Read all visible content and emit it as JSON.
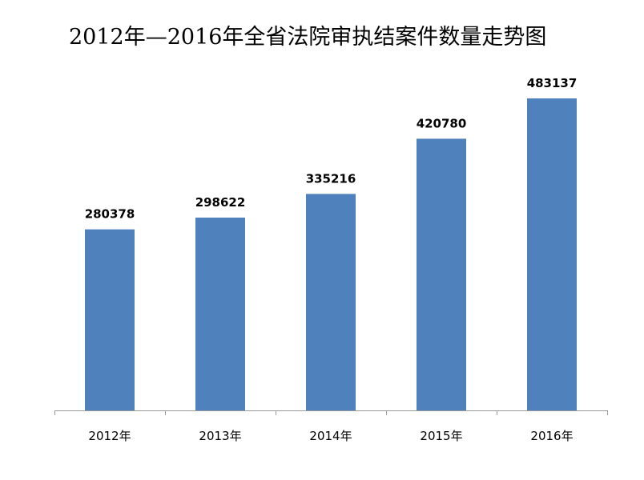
{
  "chart_data": {
    "type": "bar",
    "title": "2012年—2016年全省法院审执结案件数量走势图",
    "xlabel": "",
    "ylabel": "",
    "categories": [
      "2012年",
      "2013年",
      "2014年",
      "2015年",
      "2016年"
    ],
    "values": [
      280378,
      298622,
      335216,
      420780,
      483137
    ],
    "ylim": [
      0,
      560000
    ],
    "bar_color": "#4f81bd",
    "grid": false,
    "legend": "none",
    "data_labels": true
  }
}
